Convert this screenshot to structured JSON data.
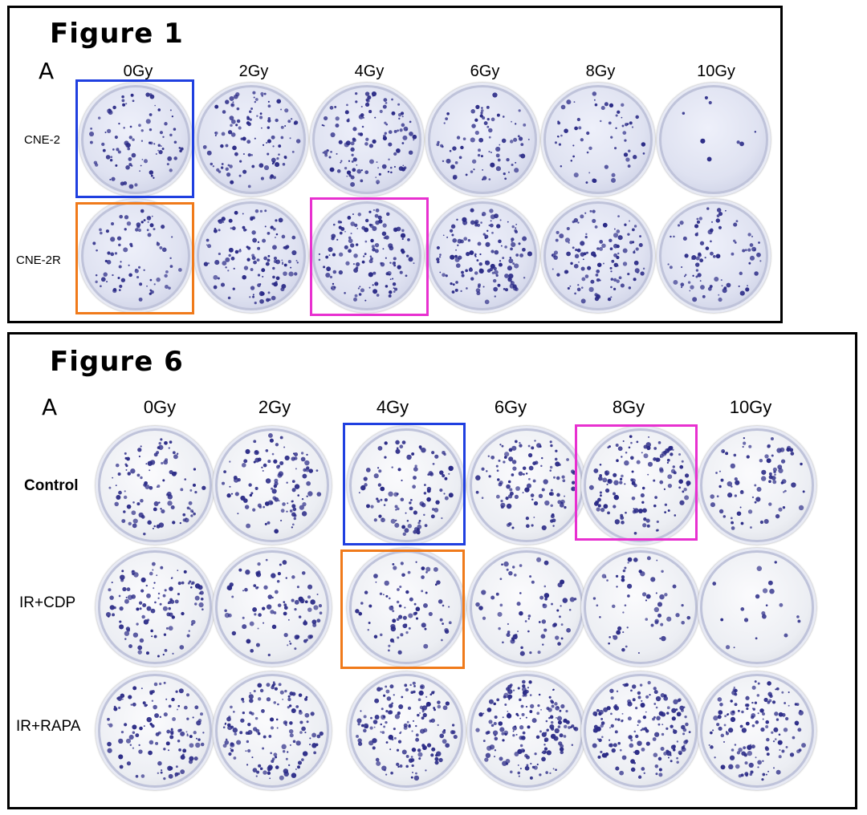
{
  "figure1": {
    "title": "Figure 1",
    "panel_label": "A",
    "columns": [
      "0Gy",
      "2Gy",
      "4Gy",
      "6Gy",
      "8Gy",
      "10Gy"
    ],
    "rows": [
      "CNE-2",
      "CNE-2R"
    ]
  },
  "figure6": {
    "title": "Figure 6",
    "panel_label": "A",
    "columns": [
      "0Gy",
      "2Gy",
      "4Gy",
      "6Gy",
      "8Gy",
      "10Gy"
    ],
    "rows": [
      "Control",
      "IR+CDP",
      "IR+RAPA"
    ]
  },
  "colors": {
    "blue": "#1f3fe0",
    "orange": "#f07a1a",
    "magenta": "#e830d0",
    "colony": "#2a2a86"
  }
}
